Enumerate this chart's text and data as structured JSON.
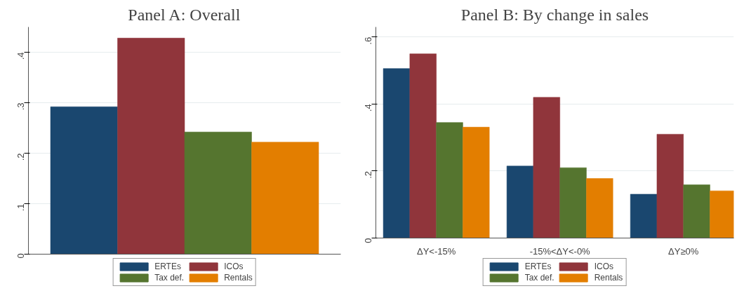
{
  "chart_data": [
    {
      "type": "bar",
      "title": "Panel A: Overall",
      "categories": [
        null
      ],
      "series": [
        {
          "name": "ERTEs",
          "color": "#1a476f",
          "values": [
            0.292
          ]
        },
        {
          "name": "ICOs",
          "color": "#90353b",
          "values": [
            0.428
          ]
        },
        {
          "name": "Tax def.",
          "color": "#55752f",
          "values": [
            0.242
          ]
        },
        {
          "name": "Rentals",
          "color": "#e37e00",
          "values": [
            0.222
          ]
        }
      ],
      "ylim": [
        0,
        0.45
      ],
      "yticks": [
        0,
        {
          "value": 0.1,
          "label": ".1"
        },
        {
          "value": 0.2,
          "label": ".2"
        },
        {
          "value": 0.3,
          "label": ".3"
        },
        {
          "value": 0.4,
          "label": ".4"
        }
      ],
      "grid": "y",
      "legend": "bottom"
    },
    {
      "type": "bar",
      "title": "Panel B: By change in sales",
      "categories": [
        "ΔY<-15%",
        "-15%<ΔY<-0%",
        "ΔY≥0%"
      ],
      "series": [
        {
          "name": "ERTEs",
          "color": "#1a476f",
          "values": [
            0.506,
            0.215,
            0.131
          ]
        },
        {
          "name": "ICOs",
          "color": "#90353b",
          "values": [
            0.55,
            0.42,
            0.31
          ]
        },
        {
          "name": "Tax def.",
          "color": "#55752f",
          "values": [
            0.345,
            0.21,
            0.159
          ]
        },
        {
          "name": "Rentals",
          "color": "#e37e00",
          "values": [
            0.331,
            0.178,
            0.141
          ]
        }
      ],
      "ylim": [
        0,
        0.63
      ],
      "yticks": [
        0,
        {
          "value": 0.2,
          "label": ".2"
        },
        {
          "value": 0.4,
          "label": ".4"
        },
        {
          "value": 0.6,
          "label": ".6"
        }
      ],
      "grid": "y",
      "legend": "bottom"
    }
  ]
}
